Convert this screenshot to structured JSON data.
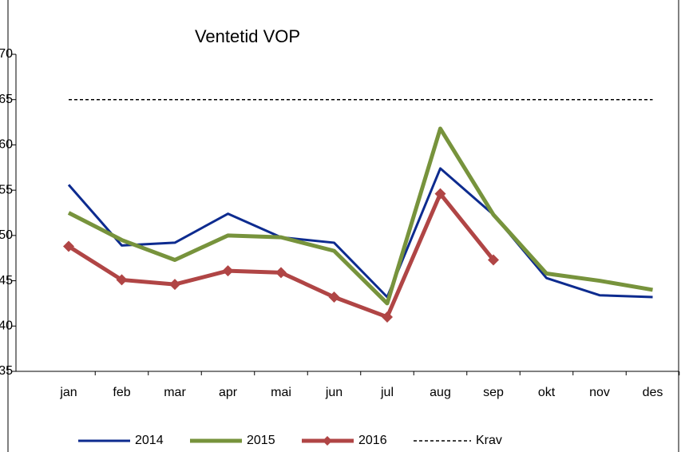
{
  "chart_data": {
    "type": "line",
    "title": "Ventetid VOP",
    "categories": [
      "jan",
      "feb",
      "mar",
      "apr",
      "mai",
      "jun",
      "jul",
      "aug",
      "sep",
      "okt",
      "nov",
      "des"
    ],
    "series": [
      {
        "name": "2014",
        "color": "#0d2b8f",
        "width": 3,
        "values": [
          55.6,
          48.9,
          49.2,
          52.4,
          49.8,
          49.2,
          43.2,
          57.4,
          52.3,
          45.3,
          43.4,
          43.2
        ]
      },
      {
        "name": "2015",
        "color": "#77933c",
        "width": 5,
        "values": [
          52.5,
          49.5,
          47.3,
          50.0,
          49.8,
          48.3,
          42.5,
          61.8,
          52.3,
          45.8,
          45.0,
          44.0
        ]
      },
      {
        "name": "2016",
        "color": "#b04545",
        "width": 5,
        "marker": "diamond",
        "values": [
          48.8,
          45.1,
          44.6,
          46.1,
          45.9,
          43.2,
          41.0,
          54.6,
          47.3,
          null,
          null,
          null
        ]
      },
      {
        "name": "Krav",
        "color": "#000000",
        "width": 1.5,
        "dashed": true,
        "values": [
          65,
          65,
          65,
          65,
          65,
          65,
          65,
          65,
          65,
          65,
          65,
          65
        ]
      }
    ],
    "ylim": [
      35,
      70
    ],
    "yticks": [
      35,
      40,
      45,
      50,
      55,
      60,
      65,
      70
    ],
    "legend": "bottom"
  }
}
